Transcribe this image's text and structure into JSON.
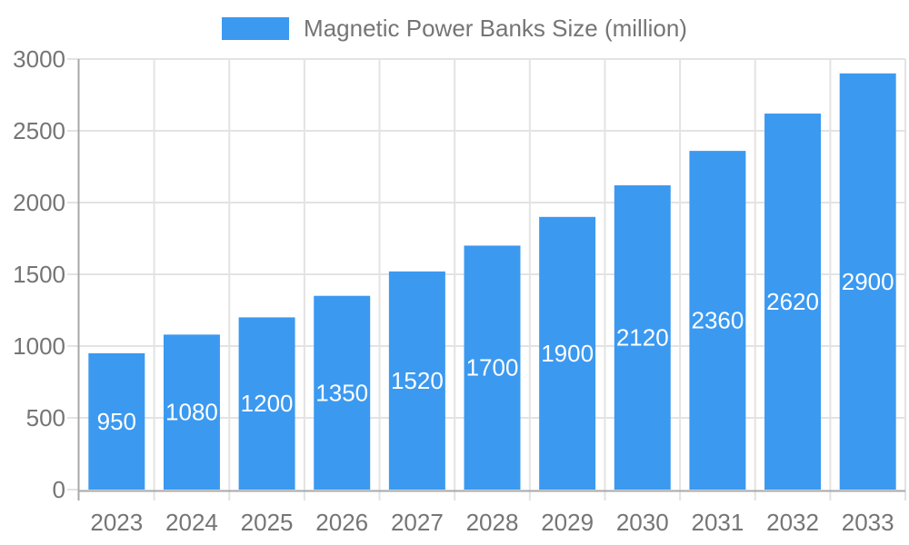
{
  "legend": {
    "label": "Magnetic Power Banks Size (million)"
  },
  "colors": {
    "bar": "#3B99F0",
    "grid": "#e3e3e3",
    "axis": "#a8a8a8",
    "axis_text": "#757575",
    "bar_label_text": "#ffffff",
    "background": "#ffffff"
  },
  "chart_data": {
    "type": "bar",
    "title": "Magnetic Power Banks Size (million)",
    "categories": [
      "2023",
      "2024",
      "2025",
      "2026",
      "2027",
      "2028",
      "2029",
      "2030",
      "2031",
      "2032",
      "2033"
    ],
    "values": [
      950,
      1080,
      1200,
      1350,
      1520,
      1700,
      1900,
      2120,
      2360,
      2620,
      2900
    ],
    "bar_labels": [
      "950",
      "1080",
      "1200",
      "1350",
      "1520",
      "1700",
      "1900",
      "2120",
      "2360",
      "2620",
      "2900"
    ],
    "xlabel": "",
    "ylabel": "",
    "ylim": [
      0,
      3000
    ],
    "ytick_step": 500,
    "ytick_labels": [
      "0",
      "500",
      "1000",
      "1500",
      "2000",
      "2500",
      "3000"
    ],
    "grid": true,
    "legend_position": "top-center",
    "bar_value_labels": "inside-center"
  }
}
